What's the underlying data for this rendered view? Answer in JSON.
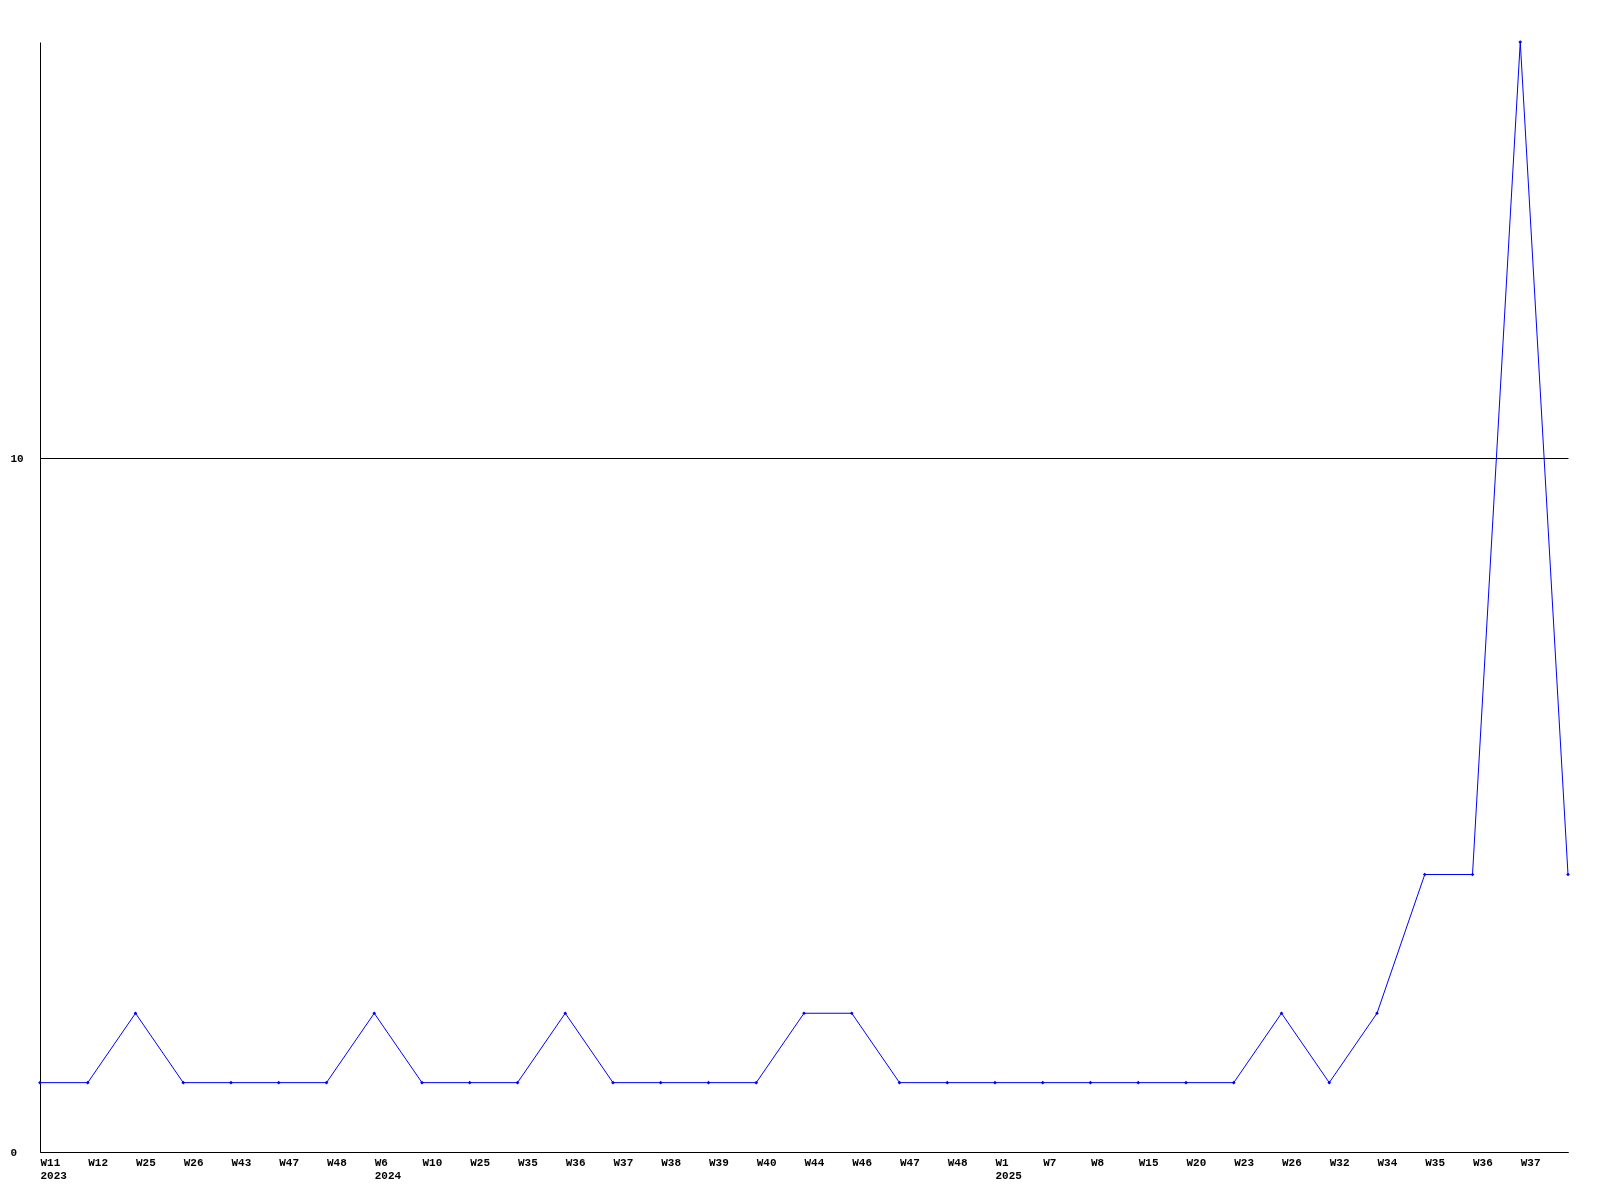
{
  "chart_data": {
    "type": "line",
    "categories": [
      "W11\n2023",
      "W12",
      "W25",
      "W26",
      "W43",
      "W47",
      "W48",
      "W6\n2024",
      "W10",
      "W25",
      "W35",
      "W36",
      "W37",
      "W38",
      "W39",
      "W40",
      "W44",
      "W46",
      "W47",
      "W48",
      "W1\n2025",
      "W7",
      "W8",
      "W15",
      "W20",
      "W23",
      "W26",
      "W32",
      "W34",
      "W35",
      "W36",
      "W37",
      null
    ],
    "series": [
      {
        "color": "#0000ff",
        "values": [
          1,
          1,
          2,
          1,
          1,
          1,
          1,
          2,
          1,
          1,
          1,
          2,
          1,
          1,
          1,
          1,
          2,
          2,
          1,
          1,
          1,
          1,
          1,
          1,
          1,
          1,
          2,
          1,
          2,
          4,
          4,
          16,
          4
        ]
      }
    ],
    "ylim": [
      0,
      16
    ],
    "yticks": [
      0,
      10
    ],
    "grid": "y",
    "marker": "diamond",
    "line_style": "solid"
  }
}
